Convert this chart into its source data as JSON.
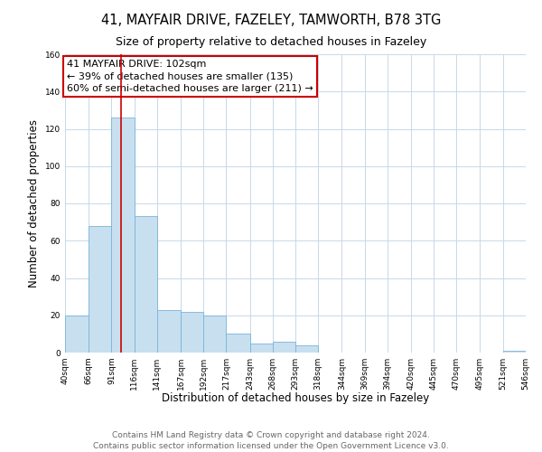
{
  "title": "41, MAYFAIR DRIVE, FAZELEY, TAMWORTH, B78 3TG",
  "subtitle": "Size of property relative to detached houses in Fazeley",
  "xlabel": "Distribution of detached houses by size in Fazeley",
  "ylabel": "Number of detached properties",
  "bin_edges": [
    40,
    66,
    91,
    116,
    141,
    167,
    192,
    217,
    243,
    268,
    293,
    318,
    344,
    369,
    394,
    420,
    445,
    470,
    495,
    521,
    546
  ],
  "bar_heights": [
    20,
    68,
    126,
    73,
    23,
    22,
    20,
    10,
    5,
    6,
    4,
    0,
    0,
    0,
    0,
    0,
    0,
    0,
    0,
    1
  ],
  "bar_color": "#c8dff0",
  "bar_edge_color": "#7ab4d8",
  "vline_x": 102,
  "vline_color": "#cc0000",
  "annotation_title": "41 MAYFAIR DRIVE: 102sqm",
  "annotation_line1": "← 39% of detached houses are smaller (135)",
  "annotation_line2": "60% of semi-detached houses are larger (211) →",
  "annotation_box_color": "#ffffff",
  "annotation_box_edge": "#cc0000",
  "tick_labels": [
    "40sqm",
    "66sqm",
    "91sqm",
    "116sqm",
    "141sqm",
    "167sqm",
    "192sqm",
    "217sqm",
    "243sqm",
    "268sqm",
    "293sqm",
    "318sqm",
    "344sqm",
    "369sqm",
    "394sqm",
    "420sqm",
    "445sqm",
    "470sqm",
    "495sqm",
    "521sqm",
    "546sqm"
  ],
  "ylim": [
    0,
    160
  ],
  "yticks": [
    0,
    20,
    40,
    60,
    80,
    100,
    120,
    140,
    160
  ],
  "footer1": "Contains HM Land Registry data © Crown copyright and database right 2024.",
  "footer2": "Contains public sector information licensed under the Open Government Licence v3.0.",
  "bg_color": "#ffffff",
  "grid_color": "#c8d8e8",
  "title_fontsize": 10.5,
  "subtitle_fontsize": 9,
  "axis_label_fontsize": 8.5,
  "tick_fontsize": 6.5,
  "annotation_fontsize": 8,
  "footer_fontsize": 6.5
}
